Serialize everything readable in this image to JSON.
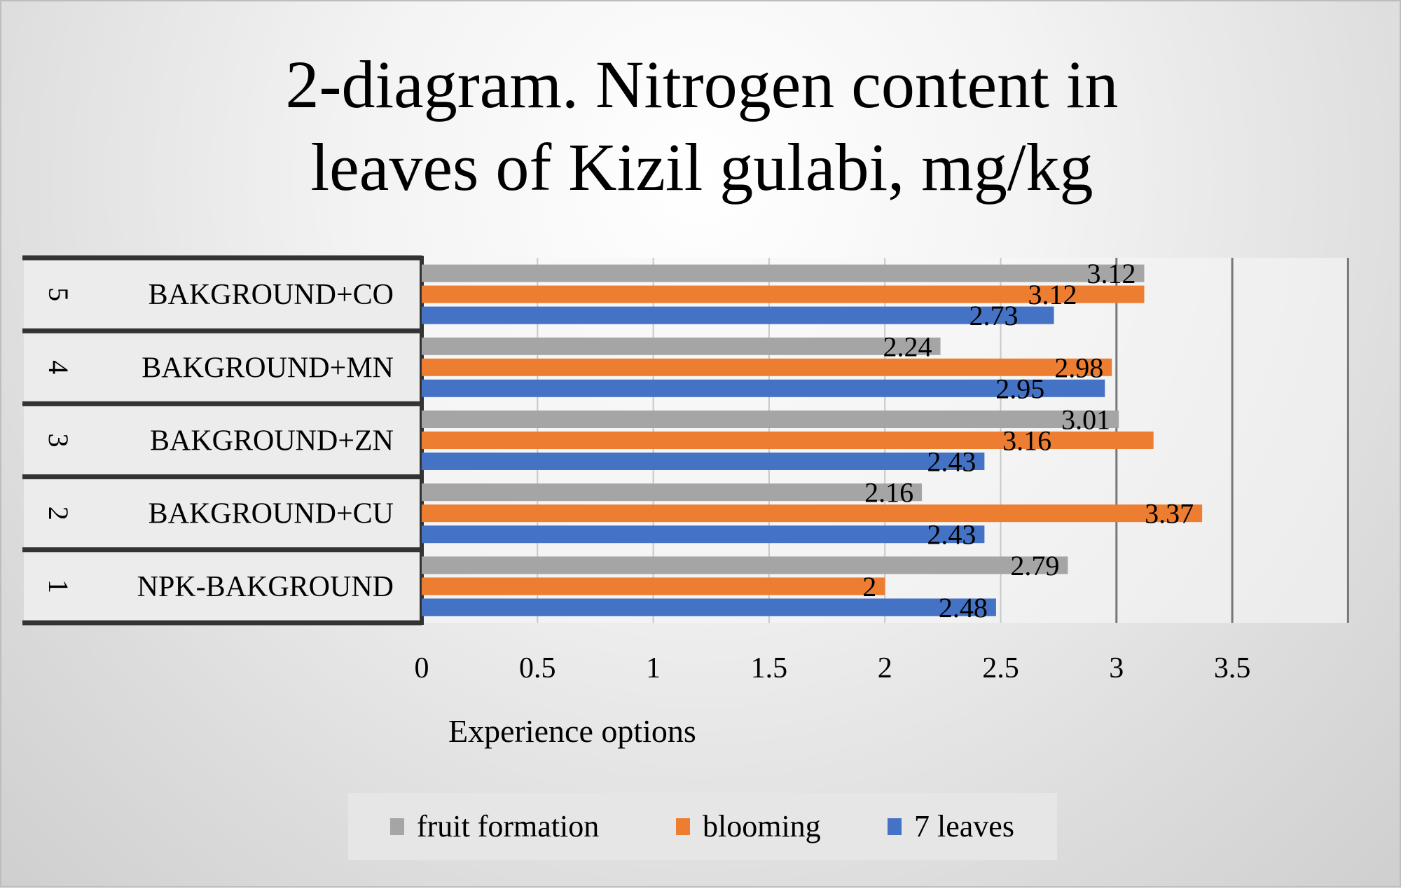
{
  "chart_data": {
    "type": "bar",
    "orientation": "horizontal",
    "title": "2-diagram. Nitrogen content in leaves of Kizil gulabi, mg/kg",
    "title_lines": [
      "2-diagram. Nitrogen content in",
      "leaves of Kizil gulabi, mg/kg"
    ],
    "xlabel": "Experience options",
    "ylabel": "",
    "xlim": [
      0,
      4
    ],
    "x_ticks": [
      "0",
      "0.5",
      "1",
      "1.5",
      "2",
      "2.5",
      "3",
      "3.5"
    ],
    "grid": true,
    "legend_position": "bottom",
    "categories": [
      {
        "number": "1",
        "label": "NPK-BAKGROUND"
      },
      {
        "number": "2",
        "label": "BAKGROUND+CU"
      },
      {
        "number": "3",
        "label": "BAKGROUND+ZN"
      },
      {
        "number": "4",
        "label": "BAKGROUND+MN"
      },
      {
        "number": "5",
        "label": "BAKGROUND+CO"
      }
    ],
    "series": [
      {
        "name": "fruit formation",
        "color": "#a5a5a5",
        "values": [
          2.79,
          2.16,
          3.01,
          2.24,
          3.12
        ],
        "labels": [
          "2.79",
          "2.16",
          "3.01",
          "2.24",
          "3.12"
        ]
      },
      {
        "name": "blooming",
        "color": "#ed7d31",
        "values": [
          2,
          3.37,
          3.16,
          2.98,
          3.12
        ],
        "labels": [
          "2",
          "3.37",
          "3.16",
          "2.98",
          "3.12"
        ]
      },
      {
        "name": "7 leaves",
        "color": "#4472c4",
        "values": [
          2.48,
          2.43,
          2.43,
          2.95,
          2.73
        ],
        "labels": [
          "2.48",
          "2.43",
          "2.43",
          "2.95",
          "2.73"
        ]
      }
    ]
  }
}
